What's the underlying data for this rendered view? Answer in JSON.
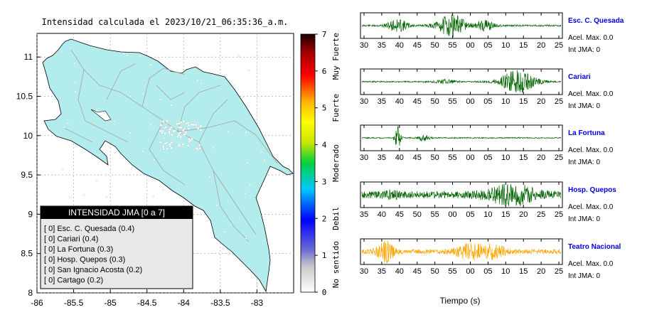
{
  "map": {
    "title": "Intensidad calculada el 2023/10/21_06:35:36_a.m.",
    "x_ticks": [
      "-86",
      "-85.5",
      "-85",
      "-84.5",
      "-84",
      "-83.5",
      "-83"
    ],
    "y_ticks": [
      "11",
      "10.5",
      "10",
      "9.5",
      "9",
      "8.5",
      "8"
    ],
    "xlim": [
      -86,
      -82.5
    ],
    "ylim": [
      8,
      11.3
    ],
    "land_color": "#b3ecec",
    "legend": {
      "title": "INTENSIDAD JMA [0 a 7]",
      "items": [
        "[ 0]  Esc. C. Quesada (0.4)",
        "[ 0]  Cariari (0.4)",
        "[ 0]  La Fortuna (0.3)",
        "[ 0]  Hosp. Quepos (0.3)",
        "[ 0]  San Ignacio Acosta (0.2)",
        "[ 0]  Cartago (0.2)"
      ]
    }
  },
  "colorbar": {
    "ticks": [
      "0",
      "1",
      "2",
      "3",
      "4",
      "5",
      "6",
      "7"
    ],
    "categories": [
      "No sentido",
      "Debil",
      "Moderado",
      "Fuerte",
      "Muy Fuerte"
    ],
    "range": [
      0,
      7
    ]
  },
  "seismograms": {
    "x_ticks": [
      "30",
      "35",
      "40",
      "45",
      "50",
      "55",
      "00",
      "05",
      "10",
      "15",
      "20",
      "25"
    ],
    "xlabel": "Tiempo (s)",
    "stations": [
      {
        "name": "Esc. C. Quesada",
        "acel": "Acel. Max. 0.0",
        "int": "Int JMA: 0",
        "color": "#006400",
        "first_tick": 30
      },
      {
        "name": "Cariari",
        "acel": "Acel. Max. 0.0",
        "int": "Int JMA: 0",
        "color": "#006400",
        "first_tick": 30
      },
      {
        "name": "La Fortuna",
        "acel": "Acel. Max. 0.0",
        "int": "Int JMA: 0",
        "color": "#006400",
        "first_tick": 30
      },
      {
        "name": "Hosp. Quepos",
        "acel": "Acel. Max. 0.0",
        "int": "Int JMA: 0",
        "color": "#006400",
        "first_tick": 35
      },
      {
        "name": "Teatro Nacional",
        "acel": "Acel. Max. 0.0",
        "int": "Int JMA: 0",
        "color": "#ffa500",
        "first_tick": 30
      }
    ]
  },
  "chart_data": {
    "type": "line",
    "title": "Intensidad calculada el 2023/10/21_06:35:36_a.m.",
    "xlabel": "Tiempo (s)",
    "series": [
      {
        "name": "Esc. C. Quesada",
        "peak_acceleration": 0.0,
        "jma_intensity": 0
      },
      {
        "name": "Cariari",
        "peak_acceleration": 0.0,
        "jma_intensity": 0
      },
      {
        "name": "La Fortuna",
        "peak_acceleration": 0.0,
        "jma_intensity": 0
      },
      {
        "name": "Hosp. Quepos",
        "peak_acceleration": 0.0,
        "jma_intensity": 0
      },
      {
        "name": "Teatro Nacional",
        "peak_acceleration": 0.0,
        "jma_intensity": 0
      }
    ],
    "map_intensity_legend": [
      {
        "station": "Esc. C. Quesada",
        "intensity": 0.4
      },
      {
        "station": "Cariari",
        "intensity": 0.4
      },
      {
        "station": "La Fortuna",
        "intensity": 0.3
      },
      {
        "station": "Hosp. Quepos",
        "intensity": 0.3
      },
      {
        "station": "San Ignacio Acosta",
        "intensity": 0.2
      },
      {
        "station": "Cartago",
        "intensity": 0.2
      }
    ]
  }
}
